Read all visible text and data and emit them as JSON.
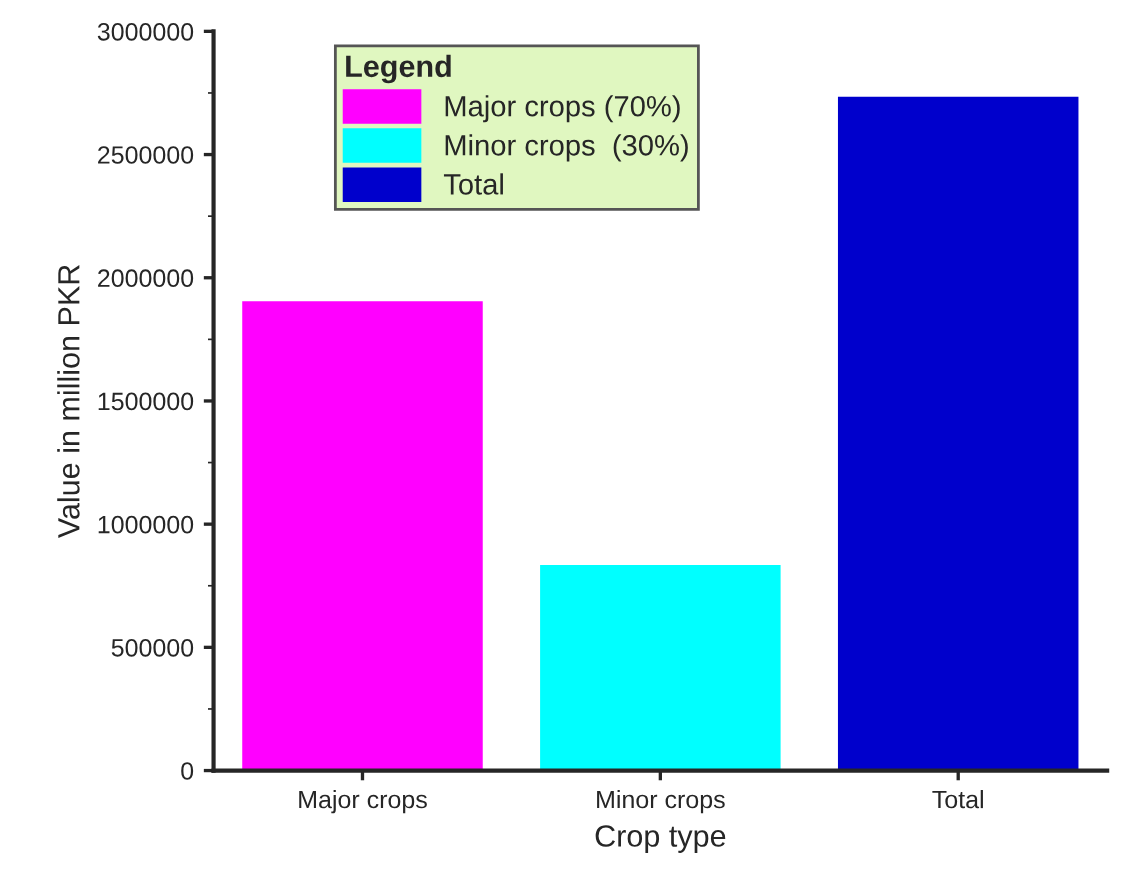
{
  "chart_data": {
    "type": "bar",
    "xlabel": "Crop type",
    "ylabel": "Value in million PKR",
    "legend_title": "Legend",
    "categories": [
      "Major crops",
      "Minor crops",
      "Total"
    ],
    "series": [
      {
        "name": "Major crops (70%)",
        "color": "#ff00ff",
        "values": [
          1900000,
          null,
          null
        ]
      },
      {
        "name": "Minor crops  (30%)",
        "color": "#00ffff",
        "values": [
          null,
          830000,
          null
        ]
      },
      {
        "name": "Total",
        "color": "#0000cc",
        "values": [
          null,
          null,
          2730000
        ]
      }
    ],
    "ylim": [
      0,
      3000000
    ],
    "yticks": [
      0,
      500000,
      1000000,
      1500000,
      2000000,
      2500000,
      3000000
    ],
    "grid": false,
    "legend": "top left"
  }
}
